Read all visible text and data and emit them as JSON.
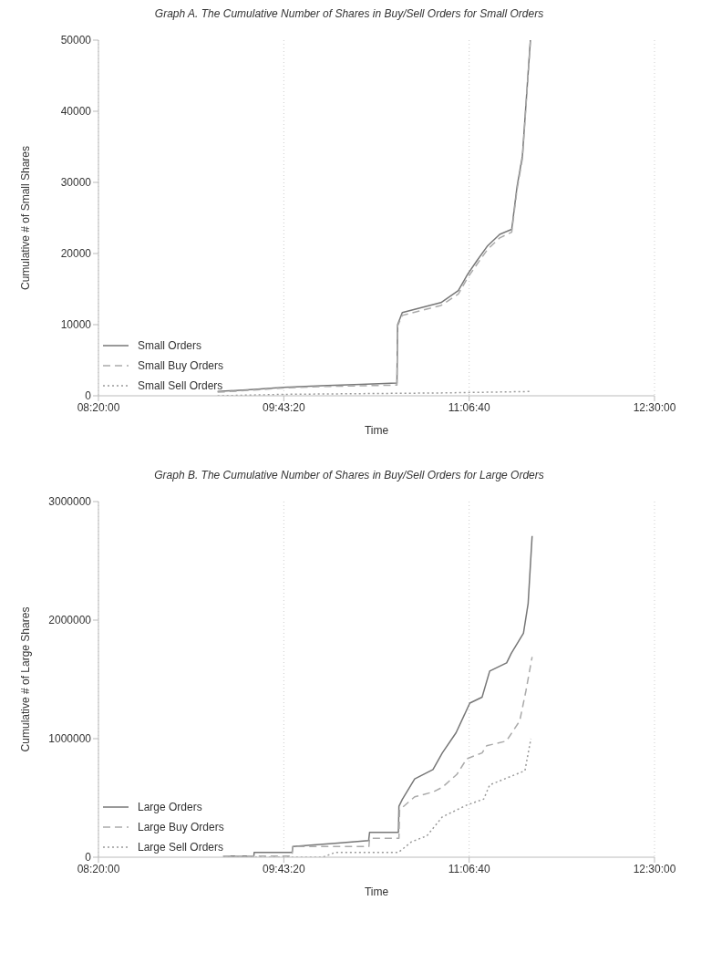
{
  "chart_data": [
    {
      "type": "line",
      "title": "Graph A. The Cumulative Number of Shares in Buy/Sell Orders for Small Orders",
      "xlabel": "Time",
      "ylabel": "Cumulative # of Small Shares",
      "xlim": [
        8.333333,
        12.5
      ],
      "xticks": [
        {
          "value": 8.333333,
          "label": "08:20:00"
        },
        {
          "value": 9.722222,
          "label": "09:43:20"
        },
        {
          "value": 11.111111,
          "label": "11:06:40"
        },
        {
          "value": 12.5,
          "label": "12:30:00"
        }
      ],
      "ylim": [
        0,
        50000
      ],
      "yticks": [
        0,
        10000,
        20000,
        30000,
        40000,
        50000
      ],
      "grid": "x",
      "legend": "bottom left",
      "series": [
        {
          "name": "Small Orders",
          "color": "#777777",
          "line_style": "solid",
          "x": [
            9.226,
            9.5,
            9.72,
            10.0,
            10.3,
            10.57,
            10.575,
            10.61,
            10.9,
            11.03,
            11.1,
            11.17,
            11.25,
            11.34,
            11.43,
            11.47,
            11.51,
            11.57
          ],
          "values": [
            600,
            900,
            1200,
            1400,
            1600,
            1800,
            10000,
            11700,
            13100,
            14800,
            17100,
            19000,
            21100,
            22700,
            23400,
            29400,
            33700,
            50000
          ]
        },
        {
          "name": "Small Buy Orders",
          "color": "#aaaaaa",
          "line_style": "dashed",
          "x": [
            9.226,
            9.5,
            9.72,
            10.0,
            10.3,
            10.57,
            10.575,
            10.61,
            10.9,
            11.03,
            11.1,
            11.17,
            11.25,
            11.34,
            11.43,
            11.47,
            11.51,
            11.57
          ],
          "values": [
            500,
            800,
            1100,
            1300,
            1400,
            1500,
            9800,
            11300,
            12700,
            14300,
            16600,
            18500,
            20600,
            22200,
            23000,
            29000,
            33300,
            49800
          ]
        },
        {
          "name": "Small Sell Orders",
          "color": "#999999",
          "line_style": "dotted",
          "x": [
            9.226,
            9.72,
            10.3,
            10.9,
            11.57
          ],
          "values": [
            0,
            200,
            300,
            400,
            600
          ]
        }
      ]
    },
    {
      "type": "line",
      "title": "Graph B. The Cumulative Number of Shares in Buy/Sell Orders for Large Orders",
      "xlabel": "Time",
      "ylabel": "Cumulative # of Large Shares",
      "xlim": [
        8.333333,
        12.5
      ],
      "xticks": [
        {
          "value": 8.333333,
          "label": "08:20:00"
        },
        {
          "value": 9.722222,
          "label": "09:43:20"
        },
        {
          "value": 11.111111,
          "label": "11:06:40"
        },
        {
          "value": 12.5,
          "label": "12:30:00"
        }
      ],
      "ylim": [
        0,
        3000000
      ],
      "yticks": [
        0,
        1000000,
        2000000,
        3000000
      ],
      "grid": "x",
      "legend": "bottom left",
      "series": [
        {
          "name": "Large Orders",
          "color": "#777777",
          "line_style": "solid",
          "x": [
            9.268,
            9.498,
            9.5,
            9.784,
            9.79,
            10.128,
            10.358,
            10.365,
            10.581,
            10.585,
            10.611,
            10.703,
            10.84,
            10.91,
            11.013,
            11.116,
            11.208,
            11.265,
            11.392,
            11.427,
            11.518,
            11.553,
            11.583
          ],
          "values": [
            10000,
            10000,
            40000,
            40000,
            90000,
            120000,
            140000,
            210000,
            210000,
            430000,
            490000,
            660000,
            740000,
            880000,
            1050000,
            1300000,
            1350000,
            1570000,
            1640000,
            1720000,
            1890000,
            2140000,
            2710000
          ]
        },
        {
          "name": "Large Buy Orders",
          "color": "#aaaaaa",
          "line_style": "dashed",
          "x": [
            9.268,
            9.784,
            9.79,
            10.36,
            10.365,
            10.585,
            10.59,
            10.703,
            10.84,
            10.91,
            11.02,
            11.093,
            11.208,
            11.242,
            11.39,
            11.49,
            11.536,
            11.583
          ],
          "values": [
            10000,
            10000,
            90000,
            90000,
            160000,
            160000,
            400000,
            510000,
            550000,
            590000,
            700000,
            830000,
            880000,
            940000,
            980000,
            1150000,
            1400000,
            1690000
          ]
        },
        {
          "name": "Large Sell Orders",
          "color": "#999999",
          "line_style": "dotted",
          "x": [
            9.268,
            10.014,
            10.106,
            10.581,
            10.679,
            10.794,
            10.91,
            11.093,
            11.22,
            11.265,
            11.529,
            11.574
          ],
          "values": [
            0,
            0,
            40000,
            40000,
            130000,
            180000,
            340000,
            440000,
            490000,
            610000,
            730000,
            1000000
          ]
        }
      ]
    }
  ]
}
